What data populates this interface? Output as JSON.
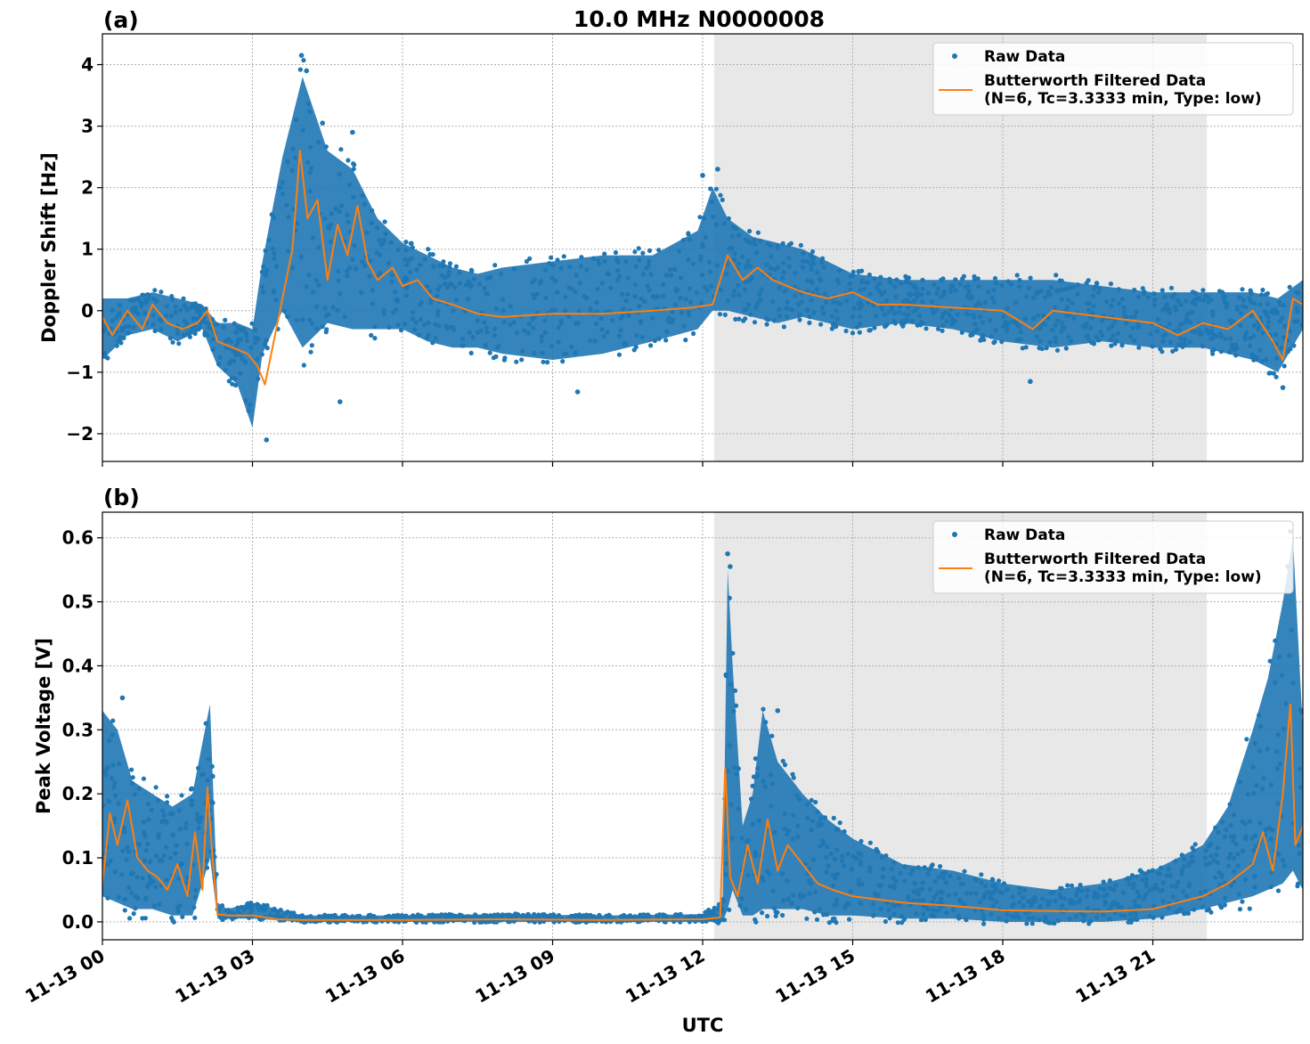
{
  "figure": {
    "title": "10.0 MHz N0000008",
    "xlabel": "UTC",
    "x_tick_labels": [
      "11-13 00",
      "11-13 03",
      "11-13 06",
      "11-13 09",
      "11-13 12",
      "11-13 15",
      "11-13 18",
      "11-13 21"
    ],
    "colors": {
      "raw": "#1f77b4",
      "filtered": "#ff7f0e",
      "shade": "#e8e8e8",
      "grid": "#b0b0b0"
    }
  },
  "chart_data": [
    {
      "panel_label": "(a)",
      "type": "scatter",
      "ylabel": "Doppler Shift [Hz]",
      "xlim_hours": [
        0,
        24
      ],
      "ylim": [
        -2.45,
        4.5
      ],
      "yticks": [
        4,
        3,
        2,
        1,
        0,
        -1,
        -2
      ],
      "ytick_labels": [
        "4",
        "3",
        "2",
        "1",
        "0",
        "−1",
        "−2"
      ],
      "grid": true,
      "legend_placement": "upper right",
      "shaded_interval_hours": [
        12.23,
        22.08
      ],
      "series": [
        {
          "name": "Raw Data",
          "style": "points",
          "band_hours": [
            0,
            0.5,
            1,
            1.5,
            2,
            2.3,
            2.7,
            3.0,
            3.2,
            3.6,
            4.0,
            4.5,
            5.0,
            5.5,
            6.0,
            6.5,
            7.0,
            7.5,
            8.0,
            9.0,
            10.0,
            11.0,
            11.9,
            12.2,
            12.5,
            13.0,
            13.5,
            14.0,
            15.0,
            16.0,
            17.0,
            18.0,
            19.0,
            20.0,
            21.0,
            22.0,
            23.0,
            23.5,
            24.0
          ],
          "band_low": [
            -0.8,
            -0.4,
            -0.3,
            -0.5,
            -0.3,
            -0.9,
            -1.2,
            -1.9,
            -0.7,
            0.0,
            -0.6,
            -0.2,
            -0.3,
            -0.3,
            -0.3,
            -0.5,
            -0.6,
            -0.6,
            -0.7,
            -0.8,
            -0.7,
            -0.5,
            -0.3,
            0.0,
            0.0,
            -0.1,
            -0.2,
            -0.1,
            -0.3,
            -0.2,
            -0.3,
            -0.5,
            -0.6,
            -0.5,
            -0.6,
            -0.6,
            -0.8,
            -1.0,
            -0.3
          ],
          "band_high": [
            0.2,
            0.2,
            0.3,
            0.2,
            0.1,
            -0.2,
            -0.2,
            -0.3,
            0.8,
            2.5,
            3.8,
            2.6,
            2.3,
            1.5,
            1.1,
            0.9,
            0.7,
            0.6,
            0.7,
            0.8,
            0.9,
            0.9,
            1.3,
            2.0,
            1.5,
            1.2,
            1.1,
            1.0,
            0.6,
            0.5,
            0.5,
            0.5,
            0.5,
            0.4,
            0.3,
            0.3,
            0.3,
            0.2,
            0.5
          ],
          "outliers": [
            [
              3.98,
              4.15
            ],
            [
              4.08,
              3.9
            ],
            [
              4.4,
              3.05
            ],
            [
              5.0,
              2.9
            ],
            [
              3.28,
              -2.1
            ],
            [
              4.75,
              -1.48
            ],
            [
              9.5,
              -1.32
            ],
            [
              12.0,
              2.2
            ],
            [
              12.3,
              2.3
            ],
            [
              18.55,
              -1.15
            ],
            [
              23.6,
              -1.25
            ]
          ]
        },
        {
          "name": "Butterworth Filtered Data\n(N=6, Tc=3.3333 min, Type: low)",
          "style": "line",
          "x_hours": [
            0,
            0.2,
            0.5,
            0.8,
            1.0,
            1.3,
            1.6,
            1.9,
            2.1,
            2.3,
            2.6,
            2.9,
            3.1,
            3.25,
            3.4,
            3.6,
            3.8,
            3.95,
            4.1,
            4.3,
            4.5,
            4.7,
            4.9,
            5.1,
            5.3,
            5.5,
            5.8,
            6.0,
            6.3,
            6.6,
            7.0,
            7.5,
            8.0,
            9.0,
            10.0,
            11.0,
            11.8,
            12.2,
            12.5,
            12.8,
            13.1,
            13.4,
            13.7,
            14.0,
            14.5,
            15.0,
            15.5,
            16.0,
            17.0,
            18.0,
            18.6,
            19.0,
            20.0,
            21.0,
            21.5,
            22.0,
            22.5,
            23.0,
            23.4,
            23.6,
            23.8,
            24.0
          ],
          "y": [
            -0.1,
            -0.4,
            0.0,
            -0.3,
            0.1,
            -0.2,
            -0.3,
            -0.2,
            0.0,
            -0.5,
            -0.6,
            -0.7,
            -0.9,
            -1.2,
            -0.6,
            0.2,
            1.0,
            2.6,
            1.5,
            1.8,
            0.5,
            1.4,
            0.9,
            1.7,
            0.8,
            0.5,
            0.7,
            0.4,
            0.5,
            0.2,
            0.1,
            -0.05,
            -0.1,
            -0.05,
            -0.05,
            0.0,
            0.05,
            0.1,
            0.9,
            0.5,
            0.7,
            0.5,
            0.4,
            0.3,
            0.2,
            0.3,
            0.1,
            0.1,
            0.05,
            0.0,
            -0.3,
            0.0,
            -0.1,
            -0.2,
            -0.4,
            -0.2,
            -0.3,
            0.0,
            -0.5,
            -0.8,
            0.2,
            0.1
          ]
        }
      ]
    },
    {
      "panel_label": "(b)",
      "type": "scatter",
      "ylabel": "Peak Voltage [V]",
      "xlim_hours": [
        0,
        24
      ],
      "ylim": [
        -0.028,
        0.64
      ],
      "yticks": [
        0.6,
        0.5,
        0.4,
        0.3,
        0.2,
        0.1,
        0.0
      ],
      "ytick_labels": [
        "0.6",
        "0.5",
        "0.4",
        "0.3",
        "0.2",
        "0.1",
        "0.0"
      ],
      "grid": true,
      "legend_placement": "upper right",
      "shaded_interval_hours": [
        12.23,
        22.08
      ],
      "series": [
        {
          "name": "Raw Data",
          "style": "points",
          "band_hours": [
            0,
            0.3,
            0.6,
            1.0,
            1.4,
            1.8,
            2.0,
            2.15,
            2.3,
            2.5,
            3.0,
            4.0,
            6.0,
            8.0,
            10.0,
            12.0,
            12.4,
            12.5,
            12.6,
            12.8,
            13.0,
            13.2,
            13.5,
            14.0,
            14.5,
            15.0,
            16.0,
            17.0,
            18.0,
            19.0,
            20.0,
            21.0,
            22.0,
            22.5,
            23.0,
            23.3,
            23.6,
            23.8,
            24.0
          ],
          "band_low": [
            0.04,
            0.03,
            0.02,
            0.02,
            0.01,
            0.01,
            0.06,
            0.1,
            0.005,
            0.005,
            0.005,
            0.0,
            0.0,
            0.0,
            0.0,
            0.0,
            0.0,
            0.02,
            0.05,
            0.01,
            0.01,
            0.02,
            0.02,
            0.02,
            0.01,
            0.01,
            0.005,
            0.005,
            0.0,
            0.0,
            0.0,
            0.005,
            0.02,
            0.03,
            0.04,
            0.05,
            0.06,
            0.08,
            0.05
          ],
          "band_high": [
            0.33,
            0.3,
            0.22,
            0.2,
            0.18,
            0.2,
            0.28,
            0.34,
            0.03,
            0.02,
            0.03,
            0.01,
            0.01,
            0.012,
            0.01,
            0.012,
            0.03,
            0.55,
            0.4,
            0.15,
            0.2,
            0.33,
            0.25,
            0.2,
            0.16,
            0.13,
            0.09,
            0.08,
            0.06,
            0.05,
            0.06,
            0.08,
            0.12,
            0.18,
            0.3,
            0.38,
            0.5,
            0.6,
            0.3
          ],
          "outliers": [
            [
              12.5,
              0.575
            ],
            [
              12.55,
              0.555
            ],
            [
              13.5,
              0.33
            ],
            [
              23.75,
              0.61
            ],
            [
              23.7,
              0.555
            ],
            [
              0.4,
              0.35
            ]
          ]
        },
        {
          "name": "Butterworth Filtered Data\n(N=6, Tc=3.3333 min, Type: low)",
          "style": "line",
          "x_hours": [
            0,
            0.15,
            0.3,
            0.5,
            0.7,
            0.9,
            1.1,
            1.3,
            1.5,
            1.7,
            1.85,
            2.0,
            2.1,
            2.2,
            2.3,
            2.5,
            3.0,
            3.5,
            4.0,
            6.0,
            8.0,
            10.0,
            12.0,
            12.35,
            12.45,
            12.55,
            12.7,
            12.9,
            13.1,
            13.3,
            13.5,
            13.7,
            14.0,
            14.3,
            14.6,
            15.0,
            16.0,
            17.0,
            18.0,
            19.0,
            20.0,
            21.0,
            21.5,
            22.0,
            22.5,
            23.0,
            23.2,
            23.4,
            23.6,
            23.75,
            23.85,
            24.0
          ],
          "y": [
            0.06,
            0.17,
            0.12,
            0.19,
            0.1,
            0.08,
            0.07,
            0.05,
            0.09,
            0.04,
            0.14,
            0.05,
            0.21,
            0.1,
            0.012,
            0.01,
            0.01,
            0.004,
            0.003,
            0.003,
            0.004,
            0.003,
            0.004,
            0.007,
            0.24,
            0.07,
            0.04,
            0.12,
            0.06,
            0.16,
            0.08,
            0.12,
            0.09,
            0.06,
            0.05,
            0.04,
            0.03,
            0.025,
            0.018,
            0.017,
            0.016,
            0.02,
            0.03,
            0.04,
            0.06,
            0.09,
            0.14,
            0.08,
            0.2,
            0.34,
            0.12,
            0.15
          ]
        }
      ]
    }
  ]
}
